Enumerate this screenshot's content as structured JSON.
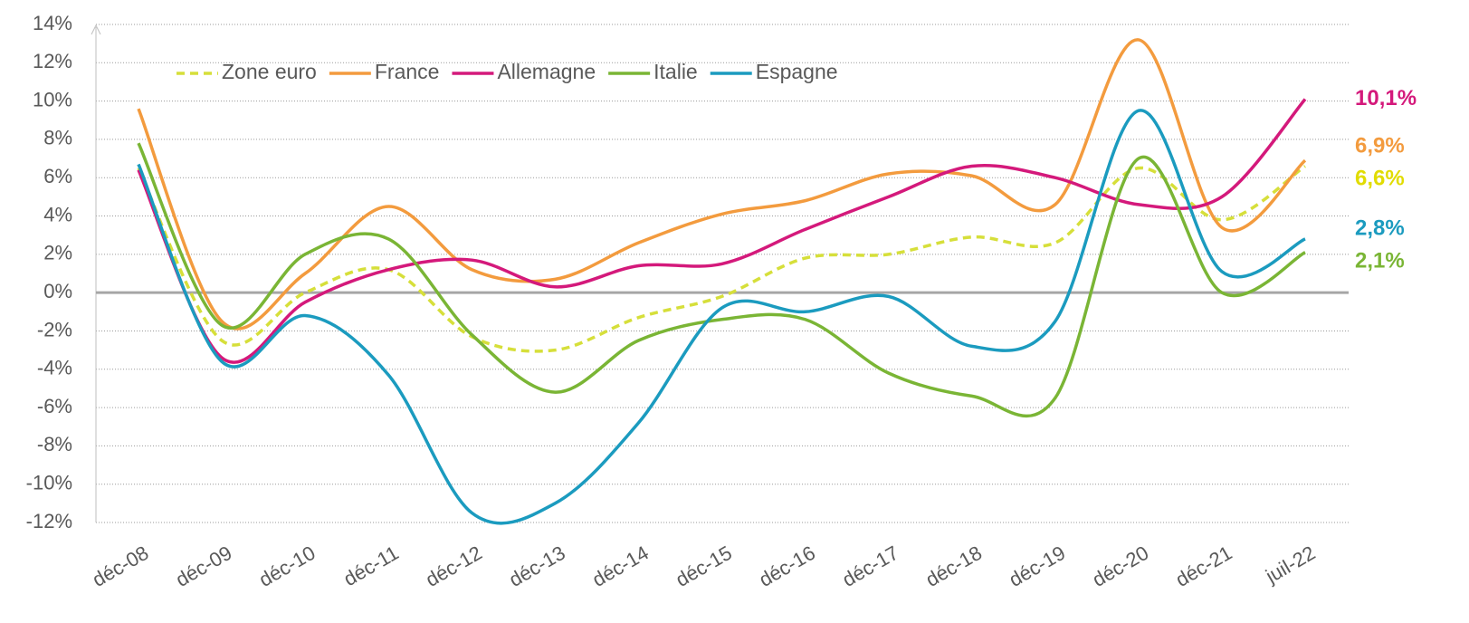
{
  "chart_data": {
    "type": "line",
    "categories": [
      "déc-08",
      "déc-09",
      "déc-10",
      "déc-11",
      "déc-12",
      "déc-13",
      "déc-14",
      "déc-15",
      "déc-16",
      "déc-17",
      "déc-18",
      "déc-19",
      "déc-20",
      "déc-21",
      "juil-22"
    ],
    "series": [
      {
        "name": "Zone euro",
        "color": "#d6df3a",
        "dash": true,
        "values": [
          6.5,
          -2.5,
          0,
          1.2,
          -2.3,
          -3,
          -1.3,
          -0.2,
          1.8,
          2.0,
          2.9,
          2.6,
          6.5,
          3.8,
          6.6
        ],
        "value_labels": [
          null,
          null,
          null,
          null,
          null,
          null,
          null,
          null,
          null,
          null,
          null,
          null,
          null,
          null,
          "6,6%"
        ]
      },
      {
        "name": "France",
        "color": "#f39b3e",
        "values": [
          9.6,
          -1.5,
          1.0,
          4.5,
          1.2,
          0.7,
          2.6,
          4.1,
          4.8,
          6.2,
          6.1,
          4.6,
          13.2,
          3.4,
          6.9
        ],
        "value_labels": [
          null,
          null,
          null,
          null,
          null,
          null,
          null,
          null,
          null,
          null,
          null,
          null,
          null,
          null,
          "6,9%"
        ]
      },
      {
        "name": "Allemagne",
        "color": "#d4197b",
        "values": [
          6.4,
          -3.4,
          -0.5,
          1.2,
          1.7,
          0.3,
          1.4,
          1.5,
          3.3,
          5.0,
          6.6,
          6.0,
          4.6,
          5.0,
          10.1
        ],
        "value_labels": [
          null,
          null,
          null,
          null,
          null,
          null,
          null,
          null,
          null,
          null,
          null,
          null,
          null,
          null,
          "10,1%"
        ]
      },
      {
        "name": "Italie",
        "color": "#7ab535",
        "values": [
          7.8,
          -1.7,
          2.0,
          2.8,
          -2.2,
          -5.2,
          -2.5,
          -1.4,
          -1.4,
          -4.2,
          -5.4,
          -5.5,
          7.0,
          0.0,
          2.1
        ],
        "value_labels": [
          null,
          null,
          null,
          null,
          null,
          null,
          null,
          null,
          null,
          null,
          null,
          null,
          null,
          null,
          "2,1%"
        ]
      },
      {
        "name": "Espagne",
        "color": "#1b9bbf",
        "values": [
          6.7,
          -3.6,
          -1.2,
          -4.3,
          -11.5,
          -11.0,
          -6.8,
          -0.8,
          -1.0,
          -0.2,
          -2.8,
          -1.5,
          9.5,
          1.1,
          2.8
        ],
        "value_labels": [
          null,
          null,
          null,
          null,
          null,
          null,
          null,
          null,
          null,
          null,
          null,
          null,
          null,
          null,
          "2,8%"
        ]
      }
    ],
    "ylim": [
      -12,
      14
    ],
    "yticks": [
      {
        "value": -12,
        "label": "-12%"
      },
      {
        "value": -10,
        "label": "-10%"
      },
      {
        "value": -8,
        "label": "-8%"
      },
      {
        "value": -6,
        "label": "-6%"
      },
      {
        "value": -4,
        "label": "-4%"
      },
      {
        "value": -2,
        "label": "-2%"
      },
      {
        "value": 0,
        "label": "0%"
      },
      {
        "value": 2,
        "label": "2%"
      },
      {
        "value": 4,
        "label": "4%"
      },
      {
        "value": 6,
        "label": "6%"
      },
      {
        "value": 8,
        "label": "8%"
      },
      {
        "value": 10,
        "label": "10%"
      },
      {
        "value": 12,
        "label": "12%"
      },
      {
        "value": 14,
        "label": "14%"
      }
    ],
    "grid": true,
    "legend": "top-left"
  }
}
